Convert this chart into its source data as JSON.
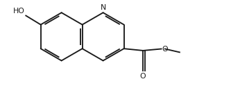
{
  "background_color": "#ffffff",
  "line_color": "#1a1a1a",
  "line_width": 1.35,
  "font_size": 7.8,
  "scale": 0.365,
  "ox": 1.02,
  "oy": 0.5,
  "figsize": [
    3.33,
    1.37
  ],
  "dpi": 100,
  "xlim": [
    -0.1,
    3.15
  ],
  "ylim": [
    -0.38,
    1.05
  ]
}
